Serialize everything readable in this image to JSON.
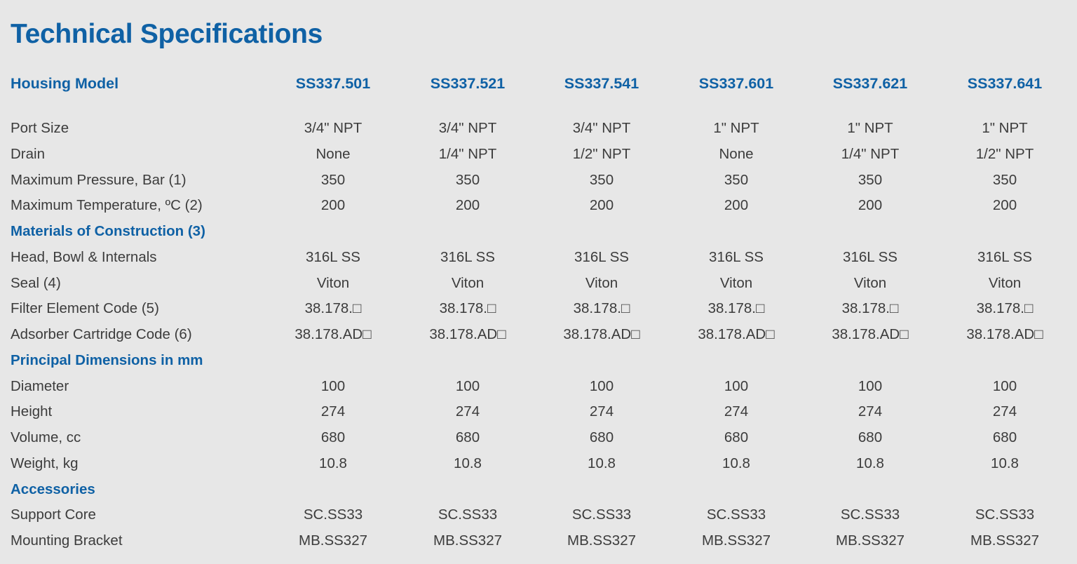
{
  "title": "Technical Specifications",
  "header": {
    "label": "Housing Model",
    "models": [
      "SS337.501",
      "SS337.521",
      "SS337.541",
      "SS337.601",
      "SS337.621",
      "SS337.641"
    ]
  },
  "rows": [
    {
      "type": "data",
      "label": "Port Size",
      "values": [
        "3/4\" NPT",
        "3/4\" NPT",
        "3/4\" NPT",
        "1\" NPT",
        "1\" NPT",
        "1\" NPT"
      ]
    },
    {
      "type": "data",
      "label": "Drain",
      "values": [
        "None",
        "1/4\" NPT",
        "1/2\" NPT",
        "None",
        "1/4\" NPT",
        "1/2\" NPT"
      ]
    },
    {
      "type": "data",
      "label": "Maximum Pressure, Bar (1)",
      "values": [
        "350",
        "350",
        "350",
        "350",
        "350",
        "350"
      ]
    },
    {
      "type": "data",
      "label": "Maximum Temperature, ºC (2)",
      "values": [
        "200",
        "200",
        "200",
        "200",
        "200",
        "200"
      ]
    },
    {
      "type": "section",
      "label": "Materials of Construction (3)"
    },
    {
      "type": "data",
      "label": "Head, Bowl & Internals",
      "values": [
        "316L SS",
        "316L SS",
        "316L SS",
        "316L SS",
        "316L SS",
        "316L SS"
      ]
    },
    {
      "type": "data",
      "label": "Seal (4)",
      "values": [
        "Viton",
        "Viton",
        "Viton",
        "Viton",
        "Viton",
        "Viton"
      ]
    },
    {
      "type": "data",
      "label": "Filter Element Code (5)",
      "values": [
        "38.178.□",
        "38.178.□",
        "38.178.□",
        "38.178.□",
        "38.178.□",
        "38.178.□"
      ]
    },
    {
      "type": "data",
      "label": "Adsorber Cartridge Code (6)",
      "values": [
        "38.178.AD□",
        "38.178.AD□",
        "38.178.AD□",
        "38.178.AD□",
        "38.178.AD□",
        "38.178.AD□"
      ]
    },
    {
      "type": "section",
      "label": "Principal Dimensions in mm"
    },
    {
      "type": "data",
      "label": "Diameter",
      "values": [
        "100",
        "100",
        "100",
        "100",
        "100",
        "100"
      ]
    },
    {
      "type": "data",
      "label": "Height",
      "values": [
        "274",
        "274",
        "274",
        "274",
        "274",
        "274"
      ]
    },
    {
      "type": "data",
      "label": "Volume, cc",
      "values": [
        "680",
        "680",
        "680",
        "680",
        "680",
        "680"
      ]
    },
    {
      "type": "data",
      "label": "Weight, kg",
      "values": [
        "10.8",
        "10.8",
        "10.8",
        "10.8",
        "10.8",
        "10.8"
      ]
    },
    {
      "type": "section",
      "label": "Accessories"
    },
    {
      "type": "data",
      "label": "Support Core",
      "values": [
        "SC.SS33",
        "SC.SS33",
        "SC.SS33",
        "SC.SS33",
        "SC.SS33",
        "SC.SS33"
      ]
    },
    {
      "type": "data",
      "label": "Mounting Bracket",
      "values": [
        "MB.SS327",
        "MB.SS327",
        "MB.SS327",
        "MB.SS327",
        "MB.SS327",
        "MB.SS327"
      ]
    }
  ]
}
